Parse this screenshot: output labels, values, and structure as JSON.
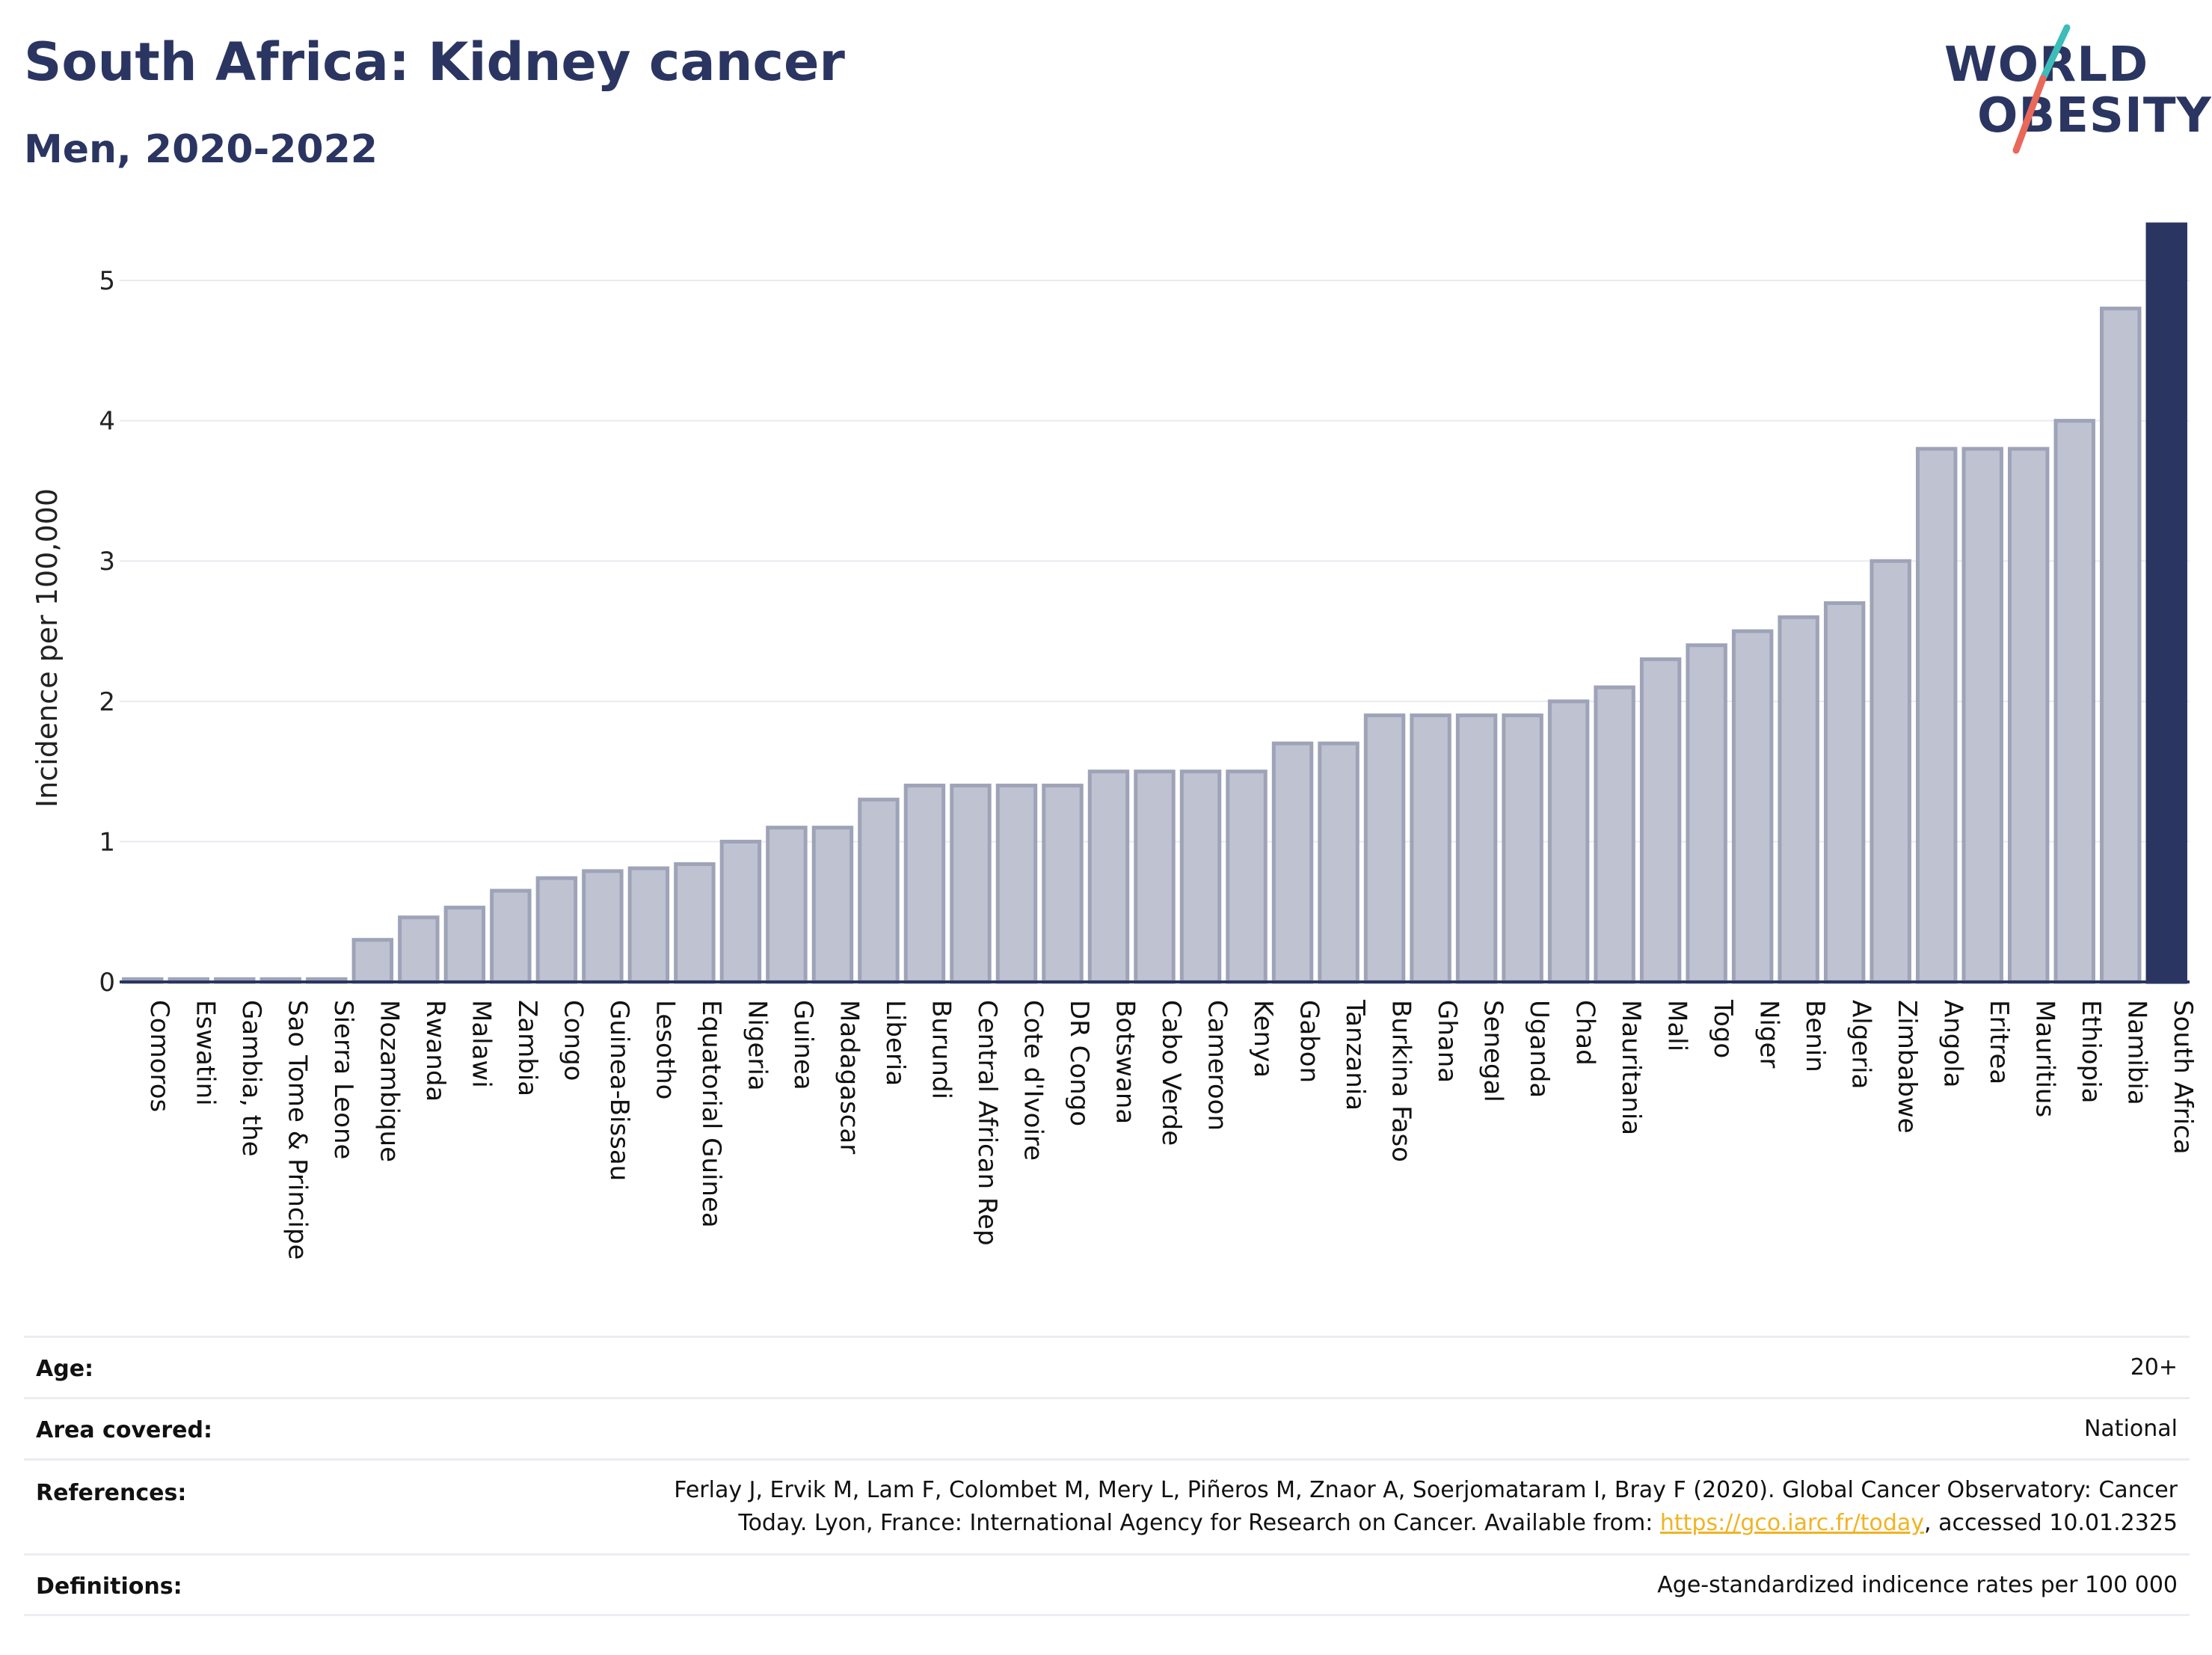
{
  "title": "South Africa: Kidney cancer",
  "subtitle": "Men, 2020-2022",
  "logo": {
    "line1": "WORLD",
    "line2": "OBESITY"
  },
  "colors": {
    "highlight": "#2b3561",
    "bar_fill": "#bfc2d1",
    "bar_stroke": "#9ea3b8",
    "accent_teal": "#3dbcb8",
    "accent_red": "#e8685a",
    "link": "#f0b323"
  },
  "chart_data": {
    "type": "bar",
    "ylabel": "Incidence per 100,000",
    "ylim": [
      0,
      5.4
    ],
    "yticks": [
      0,
      1,
      2,
      3,
      4,
      5
    ],
    "grid": true,
    "highlight": "South Africa",
    "categories": [
      "Comoros",
      "Eswatini",
      "Gambia, the",
      "Sao Tome & Principe",
      "Sierra Leone",
      "Mozambique",
      "Rwanda",
      "Malawi",
      "Zambia",
      "Congo",
      "Guinea-Bissau",
      "Lesotho",
      "Equatorial Guinea",
      "Nigeria",
      "Guinea",
      "Madagascar",
      "Liberia",
      "Burundi",
      "Central African Rep",
      "Cote d'Ivoire",
      "DR Congo",
      "Botswana",
      "Cabo Verde",
      "Cameroon",
      "Kenya",
      "Gabon",
      "Tanzania",
      "Burkina Faso",
      "Ghana",
      "Senegal",
      "Uganda",
      "Chad",
      "Mauritania",
      "Mali",
      "Togo",
      "Niger",
      "Benin",
      "Algeria",
      "Zimbabwe",
      "Angola",
      "Eritrea",
      "Mauritius",
      "Ethiopia",
      "Namibia",
      "South Africa"
    ],
    "values": [
      0.02,
      0.02,
      0.02,
      0.02,
      0.02,
      0.3,
      0.46,
      0.53,
      0.65,
      0.74,
      0.79,
      0.81,
      0.84,
      1.0,
      1.1,
      1.1,
      1.3,
      1.4,
      1.4,
      1.4,
      1.4,
      1.5,
      1.5,
      1.5,
      1.5,
      1.7,
      1.7,
      1.9,
      1.9,
      1.9,
      1.9,
      2.0,
      2.1,
      2.3,
      2.4,
      2.5,
      2.6,
      2.7,
      3.0,
      3.8,
      3.8,
      3.8,
      4.0,
      4.8,
      5.4
    ]
  },
  "meta": {
    "age_label": "Age:",
    "age_value": "20+",
    "area_label": "Area covered:",
    "area_value": "National",
    "ref_label": "References:",
    "ref_line1": "Ferlay J, Ervik M, Lam F, Colombet M, Mery L, Piñeros M, Znaor A, Soerjomataram I, Bray F (2020). Global Cancer Observatory: Cancer",
    "ref_line2_pre": "Today. Lyon, France: International Agency for Research on Cancer. Available from: ",
    "ref_link": "https://gco.iarc.fr/today",
    "ref_line2_post": ", accessed 10.01.2325",
    "def_label": "Definitions:",
    "def_value": "Age-standardized indicence rates per 100 000"
  }
}
